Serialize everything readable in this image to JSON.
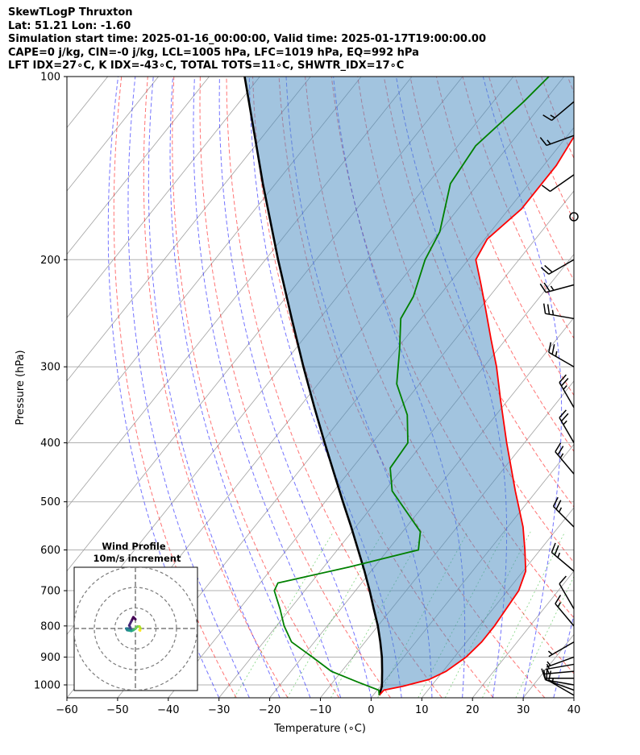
{
  "header": {
    "line1": "SkewTLogP Thruxton",
    "line2": "Lat: 51.21   Lon: -1.60",
    "line3": "Simulation start time: 2025-01-16_00:00:00, Valid time: 2025-01-17T19:00:00.00",
    "line4": "CAPE=0 j/kg, CIN=-0 j/kg, LCL=1005 hPa, LFC=1019 hPa, EQ=992 hPa",
    "line5": "LFT IDX=27∘C, K IDX=-43∘C, TOTAL TOTS=11∘C, SHWTR_IDX=17∘C"
  },
  "chart_data": {
    "type": "line",
    "chart_kind": "skew-T log-P diagram",
    "xlabel": "Temperature (∘C)",
    "ylabel": "Pressure (hPa)",
    "xlim": [
      -60,
      40
    ],
    "ylim": [
      1050,
      100
    ],
    "y_scale": "log",
    "grid": true,
    "x_ticks": [
      -60,
      -50,
      -40,
      -30,
      -20,
      -10,
      0,
      10,
      20,
      30,
      40
    ],
    "y_ticks": [
      100,
      200,
      300,
      400,
      500,
      600,
      700,
      800,
      900,
      1000
    ],
    "series": [
      {
        "role": "temperature",
        "color": "#ff0000",
        "points": [
          {
            "p": 1040,
            "t": 1.2
          },
          {
            "p": 1020,
            "t": 1.3
          },
          {
            "p": 1005,
            "t": 4.5
          },
          {
            "p": 980,
            "t": 8.5
          },
          {
            "p": 950,
            "t": 10.6
          },
          {
            "p": 900,
            "t": 12.3
          },
          {
            "p": 850,
            "t": 13.0
          },
          {
            "p": 800,
            "t": 13.0
          },
          {
            "p": 700,
            "t": 12.2
          },
          {
            "p": 650,
            "t": 10.5
          },
          {
            "p": 600,
            "t": 7.0
          },
          {
            "p": 550,
            "t": 3.0
          },
          {
            "p": 480,
            "t": -4.2
          },
          {
            "p": 400,
            "t": -13.5
          },
          {
            "p": 340,
            "t": -21.5
          },
          {
            "p": 300,
            "t": -27.5
          },
          {
            "p": 270,
            "t": -33.0
          },
          {
            "p": 240,
            "t": -39.0
          },
          {
            "p": 220,
            "t": -43.5
          },
          {
            "p": 200,
            "t": -48.5
          },
          {
            "p": 185,
            "t": -49.5
          },
          {
            "p": 165,
            "t": -47.5
          },
          {
            "p": 140,
            "t": -47.5
          },
          {
            "p": 120,
            "t": -49.0
          },
          {
            "p": 110,
            "t": -51.0
          },
          {
            "p": 100,
            "t": -54.0
          }
        ]
      },
      {
        "role": "dewpoint",
        "color": "#008000",
        "points": [
          {
            "p": 1040,
            "t": 1.2
          },
          {
            "p": 1020,
            "t": 0.3
          },
          {
            "p": 990,
            "t": -5.0
          },
          {
            "p": 950,
            "t": -12.0
          },
          {
            "p": 900,
            "t": -18.0
          },
          {
            "p": 850,
            "t": -24.5
          },
          {
            "p": 800,
            "t": -28.5
          },
          {
            "p": 750,
            "t": -32.0
          },
          {
            "p": 700,
            "t": -36.0
          },
          {
            "p": 680,
            "t": -36.5
          },
          {
            "p": 640,
            "t": -25.0
          },
          {
            "p": 600,
            "t": -14.0
          },
          {
            "p": 560,
            "t": -16.5
          },
          {
            "p": 480,
            "t": -28.5
          },
          {
            "p": 440,
            "t": -32.5
          },
          {
            "p": 400,
            "t": -33.0
          },
          {
            "p": 360,
            "t": -37.5
          },
          {
            "p": 320,
            "t": -44.5
          },
          {
            "p": 280,
            "t": -49.5
          },
          {
            "p": 250,
            "t": -54.0
          },
          {
            "p": 230,
            "t": -55.0
          },
          {
            "p": 200,
            "t": -58.5
          },
          {
            "p": 180,
            "t": -60.0
          },
          {
            "p": 150,
            "t": -65.5
          },
          {
            "p": 130,
            "t": -66.5
          },
          {
            "p": 110,
            "t": -64.0
          },
          {
            "p": 100,
            "t": -63.0
          }
        ]
      },
      {
        "role": "parcel",
        "color": "#000000",
        "points": [
          {
            "p": 1040,
            "t": 1.2
          },
          {
            "p": 1005,
            "t": 0.3
          },
          {
            "p": 950,
            "t": -2.0
          },
          {
            "p": 900,
            "t": -4.3
          },
          {
            "p": 850,
            "t": -7.0
          },
          {
            "p": 800,
            "t": -10.0
          },
          {
            "p": 750,
            "t": -13.5
          },
          {
            "p": 700,
            "t": -17.2
          },
          {
            "p": 650,
            "t": -21.3
          },
          {
            "p": 600,
            "t": -25.9
          },
          {
            "p": 550,
            "t": -30.9
          },
          {
            "p": 500,
            "t": -36.5
          },
          {
            "p": 450,
            "t": -42.6
          },
          {
            "p": 400,
            "t": -49.4
          },
          {
            "p": 350,
            "t": -57.0
          },
          {
            "p": 300,
            "t": -65.6
          },
          {
            "p": 250,
            "t": -75.5
          },
          {
            "p": 200,
            "t": -87.5
          },
          {
            "p": 150,
            "t": -102.5
          },
          {
            "p": 100,
            "t": -123.0
          }
        ]
      }
    ],
    "cin_shading": "between parcel and temperature, light steel blue",
    "wind_barbs": [
      {
        "p": 1040,
        "dir": 300,
        "spd": 15
      },
      {
        "p": 1020,
        "dir": 290,
        "spd": 12
      },
      {
        "p": 1000,
        "dir": 280,
        "spd": 10
      },
      {
        "p": 975,
        "dir": 270,
        "spd": 10
      },
      {
        "p": 950,
        "dir": 265,
        "spd": 8
      },
      {
        "p": 925,
        "dir": 260,
        "spd": 7
      },
      {
        "p": 900,
        "dir": 250,
        "spd": 6
      },
      {
        "p": 850,
        "dir": 240,
        "spd": 5
      },
      {
        "p": 800,
        "dir": 320,
        "spd": 15
      },
      {
        "p": 750,
        "dir": 330,
        "spd": 10
      },
      {
        "p": 650,
        "dir": 310,
        "spd": 25
      },
      {
        "p": 550,
        "dir": 315,
        "spd": 25
      },
      {
        "p": 450,
        "dir": 320,
        "spd": 25
      },
      {
        "p": 400,
        "dir": 330,
        "spd": 25
      },
      {
        "p": 350,
        "dir": 330,
        "spd": 25
      },
      {
        "p": 300,
        "dir": 300,
        "spd": 25
      },
      {
        "p": 250,
        "dir": 280,
        "spd": 25
      },
      {
        "p": 220,
        "dir": 255,
        "spd": 25
      },
      {
        "p": 200,
        "dir": 240,
        "spd": 20
      },
      {
        "p": 170,
        "dir": 0,
        "spd": 0
      },
      {
        "p": 145,
        "dir": 235,
        "spd": 10
      },
      {
        "p": 125,
        "dir": 250,
        "spd": 15
      },
      {
        "p": 110,
        "dir": 230,
        "spd": 15
      }
    ],
    "hodograph": {
      "title": "Wind Profile",
      "subtitle": "10m/s increment",
      "ring_spacing_ms": 10,
      "rings": 3,
      "points": [
        {
          "u": 0.0,
          "v": 4.5
        },
        {
          "u": -1.0,
          "v": 5.5
        },
        {
          "u": -2.0,
          "v": 3.5
        },
        {
          "u": -3.0,
          "v": 1.5
        },
        {
          "u": -2.5,
          "v": 0.5
        },
        {
          "u": -2.0,
          "v": -0.5
        },
        {
          "u": -3.5,
          "v": 0.0
        },
        {
          "u": -4.5,
          "v": 0.0
        },
        {
          "u": -4.0,
          "v": -0.8
        },
        {
          "u": -3.0,
          "v": -1.0
        },
        {
          "u": -2.0,
          "v": -1.2
        },
        {
          "u": -1.0,
          "v": -0.8
        },
        {
          "u": 0.0,
          "v": 0.0
        },
        {
          "u": 1.0,
          "v": 1.0
        },
        {
          "u": 2.0,
          "v": 1.0
        },
        {
          "u": 2.5,
          "v": 0.0
        },
        {
          "u": 2.0,
          "v": -0.8
        },
        {
          "u": 2.3,
          "v": -1.0
        }
      ]
    }
  }
}
